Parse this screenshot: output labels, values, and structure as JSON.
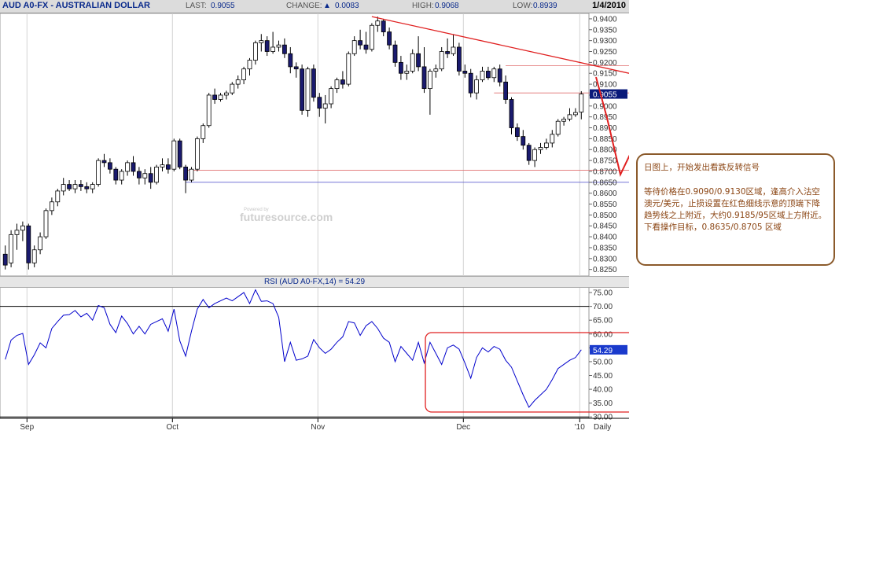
{
  "header": {
    "symbol": "AUD A0-FX - AUSTRALIAN DOLLAR",
    "last_label": "LAST:",
    "last_value": "0.9055",
    "change_label": "CHANGE:",
    "change_value": "0.0083",
    "high_label": "HIGH:",
    "high_value": "0.9068",
    "low_label": "LOW:",
    "low_value": "0.8939",
    "date": "1/4/2010"
  },
  "watermark": "futuresource.com",
  "rsi_header": "RSI (AUD A0-FX,14) = 54.29",
  "note": {
    "line1": "日图上，开始发出看跌反转信号",
    "line2": "等待价格在0.9090/0.9130区域，逢高介入沽空澳元/美元，止损设置在红色细线示意的顶端下降趋势线之上附近，大约0.9185/95区域上方附近。",
    "line3": "下看操作目标，0.8635/0.8705 区域"
  },
  "colors": {
    "candle_down": "#1a1a6e",
    "candle_up": "#ffffff",
    "rsi_line": "#0000cc",
    "annotation_red": "#e02020",
    "note_border": "#8b5a2b",
    "last_price_tag": "#0a1a7a"
  },
  "chart_data": [
    {
      "type": "candlestick",
      "title": "AUD A0-FX - AUSTRALIAN DOLLAR",
      "y_axis_side": "right",
      "ylim": [
        0.822,
        0.9425
      ],
      "y_ticks": [
        "0.9400",
        "0.9350",
        "0.9300",
        "0.9250",
        "0.9200",
        "0.9150",
        "0.9100",
        "0.9050",
        "0.9000",
        "0.8950",
        "0.8900",
        "0.8850",
        "0.8800",
        "0.8750",
        "0.8700",
        "0.8650",
        "0.8600",
        "0.8550",
        "0.8500",
        "0.8450",
        "0.8400",
        "0.8350",
        "0.8300",
        "0.8250"
      ],
      "x_labels": [
        "Sep",
        "Oct",
        "Nov",
        "Dec",
        "'10"
      ],
      "x_extra_label": "Daily",
      "last_price": "0.9055",
      "ohlc": [
        [
          0.832,
          0.836,
          0.825,
          0.827
        ],
        [
          0.828,
          0.843,
          0.826,
          0.841
        ],
        [
          0.841,
          0.846,
          0.834,
          0.843
        ],
        [
          0.843,
          0.847,
          0.838,
          0.845
        ],
        [
          0.845,
          0.846,
          0.825,
          0.828
        ],
        [
          0.828,
          0.836,
          0.826,
          0.834
        ],
        [
          0.834,
          0.842,
          0.832,
          0.84
        ],
        [
          0.84,
          0.853,
          0.839,
          0.852
        ],
        [
          0.852,
          0.858,
          0.85,
          0.856
        ],
        [
          0.856,
          0.862,
          0.854,
          0.861
        ],
        [
          0.861,
          0.867,
          0.859,
          0.864
        ],
        [
          0.864,
          0.866,
          0.861,
          0.862
        ],
        [
          0.862,
          0.866,
          0.86,
          0.864
        ],
        [
          0.864,
          0.866,
          0.861,
          0.863
        ],
        [
          0.863,
          0.865,
          0.86,
          0.862
        ],
        [
          0.862,
          0.865,
          0.86,
          0.864
        ],
        [
          0.864,
          0.876,
          0.863,
          0.875
        ],
        [
          0.875,
          0.878,
          0.872,
          0.874
        ],
        [
          0.874,
          0.876,
          0.869,
          0.871
        ],
        [
          0.871,
          0.872,
          0.864,
          0.866
        ],
        [
          0.866,
          0.871,
          0.864,
          0.87
        ],
        [
          0.87,
          0.875,
          0.868,
          0.874
        ],
        [
          0.874,
          0.877,
          0.868,
          0.87
        ],
        [
          0.87,
          0.872,
          0.864,
          0.867
        ],
        [
          0.867,
          0.871,
          0.864,
          0.869
        ],
        [
          0.869,
          0.872,
          0.862,
          0.865
        ],
        [
          0.865,
          0.873,
          0.864,
          0.872
        ],
        [
          0.872,
          0.876,
          0.87,
          0.873
        ],
        [
          0.873,
          0.876,
          0.869,
          0.871
        ],
        [
          0.871,
          0.885,
          0.87,
          0.884
        ],
        [
          0.884,
          0.885,
          0.871,
          0.872
        ],
        [
          0.872,
          0.873,
          0.86,
          0.866
        ],
        [
          0.866,
          0.872,
          0.865,
          0.871
        ],
        [
          0.871,
          0.886,
          0.87,
          0.885
        ],
        [
          0.885,
          0.892,
          0.883,
          0.891
        ],
        [
          0.891,
          0.906,
          0.89,
          0.905
        ],
        [
          0.905,
          0.908,
          0.901,
          0.903
        ],
        [
          0.903,
          0.906,
          0.902,
          0.905
        ],
        [
          0.905,
          0.907,
          0.903,
          0.906
        ],
        [
          0.906,
          0.911,
          0.905,
          0.91
        ],
        [
          0.91,
          0.914,
          0.908,
          0.912
        ],
        [
          0.912,
          0.918,
          0.91,
          0.917
        ],
        [
          0.917,
          0.922,
          0.914,
          0.921
        ],
        [
          0.921,
          0.93,
          0.919,
          0.929
        ],
        [
          0.929,
          0.933,
          0.925,
          0.93
        ],
        [
          0.93,
          0.932,
          0.923,
          0.925
        ],
        [
          0.925,
          0.934,
          0.924,
          0.927
        ],
        [
          0.927,
          0.93,
          0.925,
          0.928
        ],
        [
          0.928,
          0.931,
          0.922,
          0.924
        ],
        [
          0.924,
          0.927,
          0.915,
          0.918
        ],
        [
          0.918,
          0.92,
          0.913,
          0.917
        ],
        [
          0.917,
          0.919,
          0.896,
          0.898
        ],
        [
          0.898,
          0.918,
          0.895,
          0.917
        ],
        [
          0.917,
          0.919,
          0.902,
          0.904
        ],
        [
          0.904,
          0.906,
          0.895,
          0.899
        ],
        [
          0.899,
          0.905,
          0.892,
          0.901
        ],
        [
          0.901,
          0.909,
          0.899,
          0.908
        ],
        [
          0.908,
          0.913,
          0.906,
          0.912
        ],
        [
          0.912,
          0.916,
          0.908,
          0.91
        ],
        [
          0.91,
          0.925,
          0.909,
          0.924
        ],
        [
          0.924,
          0.932,
          0.923,
          0.93
        ],
        [
          0.93,
          0.935,
          0.926,
          0.928
        ],
        [
          0.928,
          0.934,
          0.924,
          0.926
        ],
        [
          0.926,
          0.938,
          0.925,
          0.937
        ],
        [
          0.937,
          0.941,
          0.934,
          0.939
        ],
        [
          0.939,
          0.94,
          0.932,
          0.934
        ],
        [
          0.934,
          0.936,
          0.926,
          0.928
        ],
        [
          0.928,
          0.93,
          0.918,
          0.92
        ],
        [
          0.92,
          0.923,
          0.912,
          0.915
        ],
        [
          0.915,
          0.919,
          0.912,
          0.916
        ],
        [
          0.916,
          0.926,
          0.915,
          0.924
        ],
        [
          0.924,
          0.932,
          0.916,
          0.918
        ],
        [
          0.918,
          0.927,
          0.906,
          0.908
        ],
        [
          0.908,
          0.917,
          0.896,
          0.916
        ],
        [
          0.916,
          0.919,
          0.913,
          0.917
        ],
        [
          0.917,
          0.927,
          0.916,
          0.925
        ],
        [
          0.925,
          0.931,
          0.922,
          0.924
        ],
        [
          0.924,
          0.933,
          0.923,
          0.927
        ],
        [
          0.927,
          0.929,
          0.914,
          0.916
        ],
        [
          0.916,
          0.919,
          0.913,
          0.915
        ],
        [
          0.915,
          0.917,
          0.904,
          0.906
        ],
        [
          0.906,
          0.914,
          0.903,
          0.912
        ],
        [
          0.912,
          0.918,
          0.911,
          0.916
        ],
        [
          0.916,
          0.918,
          0.912,
          0.913
        ],
        [
          0.913,
          0.918,
          0.911,
          0.917
        ],
        [
          0.917,
          0.919,
          0.909,
          0.911
        ],
        [
          0.911,
          0.914,
          0.901,
          0.903
        ],
        [
          0.903,
          0.904,
          0.887,
          0.89
        ],
        [
          0.89,
          0.892,
          0.884,
          0.886
        ],
        [
          0.886,
          0.889,
          0.88,
          0.882
        ],
        [
          0.882,
          0.883,
          0.873,
          0.875
        ],
        [
          0.875,
          0.881,
          0.872,
          0.88
        ],
        [
          0.88,
          0.883,
          0.878,
          0.881
        ],
        [
          0.881,
          0.885,
          0.88,
          0.883
        ],
        [
          0.883,
          0.889,
          0.881,
          0.887
        ],
        [
          0.887,
          0.894,
          0.886,
          0.893
        ],
        [
          0.893,
          0.895,
          0.891,
          0.894
        ],
        [
          0.894,
          0.899,
          0.893,
          0.896
        ],
        [
          0.896,
          0.899,
          0.895,
          0.897
        ],
        [
          0.8972,
          0.9068,
          0.8939,
          0.9055
        ]
      ],
      "horizontal_levels": [
        0.9185,
        0.906,
        0.8705,
        0.865
      ],
      "trendline_from": {
        "bar": 63,
        "price": 0.941
      },
      "trendline_to_price_right": 0.915
    },
    {
      "type": "line",
      "title": "RSI (AUD A0-FX,14) = 54.29",
      "ylim": [
        29.5,
        77
      ],
      "y_ticks": [
        "75.00",
        "70.00",
        "65.00",
        "60.00",
        "55.00",
        "50.00",
        "45.00",
        "40.00",
        "35.00",
        "30.00"
      ],
      "reference_lines": [
        70,
        30
      ],
      "last_value": "54.29",
      "values": [
        50.8,
        57.8,
        59.5,
        60.2,
        49.0,
        52.5,
        56.8,
        55.0,
        62.0,
        64.5,
        66.8,
        67.0,
        68.5,
        66.2,
        67.5,
        65.0,
        70.3,
        69.5,
        63.5,
        60.5,
        66.5,
        63.8,
        60.0,
        62.8,
        60.0,
        63.5,
        64.5,
        65.5,
        61.0,
        69.0,
        57.5,
        52.0,
        61.0,
        69.0,
        72.5,
        69.5,
        71.0,
        72.0,
        73.0,
        72.0,
        73.5,
        75.0,
        71.0,
        76.0,
        71.8,
        72.0,
        71.0,
        66.0,
        50.0,
        57.0,
        50.5,
        51.0,
        52.0,
        58.0,
        55.0,
        53.0,
        54.5,
        57.0,
        59.0,
        64.5,
        64.0,
        59.5,
        63.0,
        64.5,
        62.0,
        58.5,
        57.0,
        50.0,
        55.5,
        53.0,
        50.5,
        57.0,
        49.5,
        57.0,
        53.0,
        49.0,
        55.0,
        56.0,
        54.5,
        49.5,
        44.0,
        51.5,
        55.0,
        53.5,
        55.5,
        54.5,
        50.5,
        48.0,
        43.0,
        38.0,
        33.5,
        36.0,
        38.0,
        40.0,
        43.5,
        47.5,
        49.0,
        50.5,
        51.5,
        54.3
      ]
    }
  ]
}
